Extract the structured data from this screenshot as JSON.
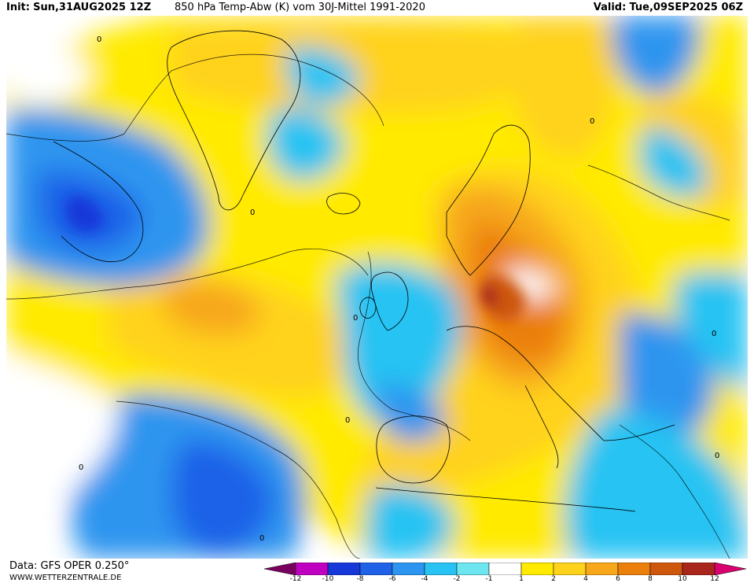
{
  "header": {
    "init_label": "Init:",
    "init_time": "Sun,31AUG2025 12Z",
    "product": "850 hPa Temp-Abw (K) vom 30J-Mittel 1991-2020",
    "valid_label": "Valid:",
    "valid_time": "Tue,09SEP2025 06Z"
  },
  "map": {
    "colors": {
      "neg_12": "#7a005d",
      "neg_10": "#c000c0",
      "neg_8": "#1638d9",
      "neg_6": "#1f62e8",
      "neg_4": "#2d95ef",
      "neg_2": "#28c3f3",
      "neg_1": "#6ee6f0",
      "zero": "#ffffff",
      "pos_1": "#ffea00",
      "pos_2": "#ffd21b",
      "pos_4": "#f7a71a",
      "pos_6": "#eb7f0c",
      "pos_8": "#cd570c",
      "pos_10": "#a8261c",
      "pos_12": "#d9006f"
    }
  },
  "footer": {
    "source": "Data: GFS OPER 0.250°",
    "website": "WWW.WETTERZENTRALE.DE"
  },
  "legend": {
    "ticks": [
      "-12",
      "-10",
      "-8",
      "-6",
      "-4",
      "-2",
      "-1",
      "1",
      "2",
      "4",
      "6",
      "8",
      "10",
      "12"
    ]
  }
}
